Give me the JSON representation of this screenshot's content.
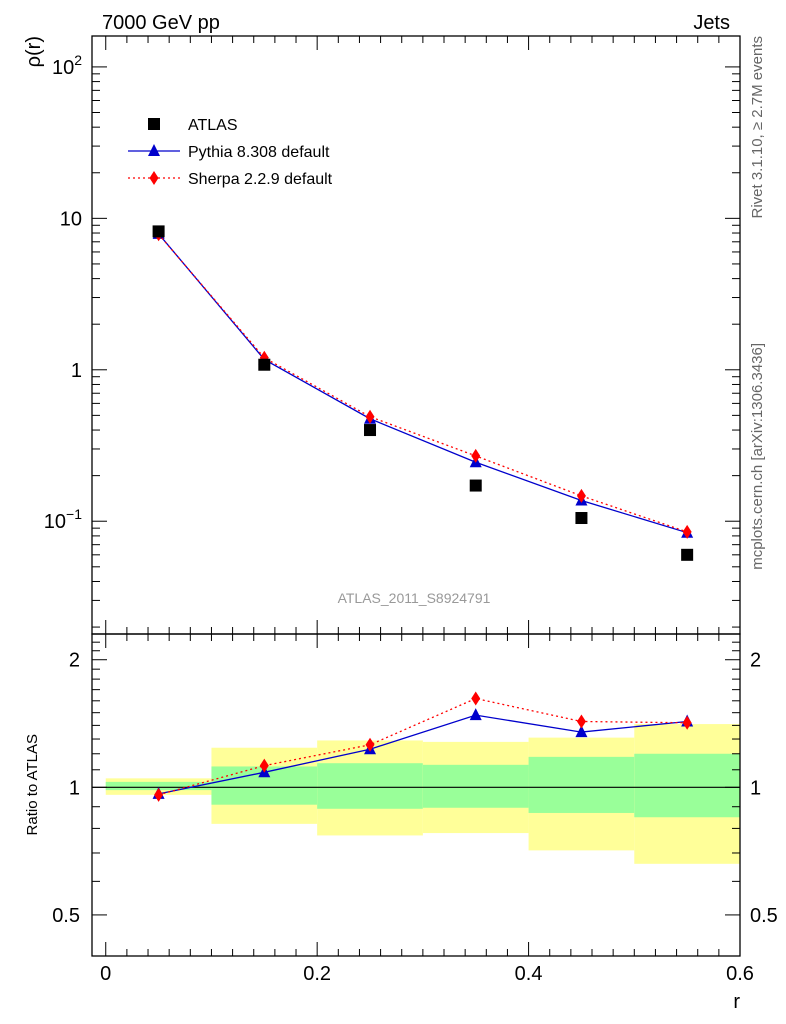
{
  "header": {
    "left": "7000 GeV pp",
    "right": "Jets"
  },
  "side_text": {
    "rivet": "Rivet 3.1.10, ≥ 2.7M events",
    "mcplots": "mcplots.cern.ch [arXiv:1306.3436]"
  },
  "watermark": "ATLAS_2011_S8924791",
  "chart_data": [
    {
      "type": "scatter",
      "ylabel": "ρ(r)",
      "xlabel": "r",
      "ylog": true,
      "ylim": [
        0.018,
        160
      ],
      "xlim": [
        -0.013,
        0.6
      ],
      "y_ticks": [
        "10^-1",
        "1",
        "10",
        "10^2"
      ],
      "legend_placement": "top-left",
      "series": [
        {
          "name": "ATLAS",
          "marker": "square",
          "color": "#000000",
          "x": [
            0.05,
            0.15,
            0.25,
            0.35,
            0.45,
            0.55
          ],
          "values": [
            8.2,
            1.08,
            0.4,
            0.172,
            0.105,
            0.06
          ]
        },
        {
          "name": "Pythia 8.308 default",
          "marker": "triangle",
          "line": "solid",
          "color": "#0000cc",
          "x": [
            0.05,
            0.15,
            0.25,
            0.35,
            0.45,
            0.55
          ],
          "values": [
            7.9,
            1.17,
            0.475,
            0.245,
            0.137,
            0.084
          ]
        },
        {
          "name": "Sherpa 2.2.9 default",
          "marker": "diamond",
          "line": "dotted",
          "color": "#ff0000",
          "x": [
            0.05,
            0.15,
            0.25,
            0.35,
            0.45,
            0.55
          ],
          "values": [
            7.85,
            1.2,
            0.49,
            0.27,
            0.147,
            0.085
          ]
        }
      ]
    },
    {
      "type": "line",
      "ylabel": "Ratio to ATLAS",
      "xlabel": "r",
      "ylog": true,
      "ylim": [
        0.4,
        2.3
      ],
      "xlim": [
        -0.013,
        0.6
      ],
      "x_ticks": [
        0,
        0.2,
        0.4,
        0.6
      ],
      "y_ticks": [
        0.5,
        1,
        2
      ],
      "bands": [
        {
          "x0": 0.0,
          "x1": 0.1,
          "green": [
            0.985,
            1.03
          ],
          "yellow": [
            0.96,
            1.05
          ]
        },
        {
          "x0": 0.1,
          "x1": 0.2,
          "green": [
            0.91,
            1.12
          ],
          "yellow": [
            0.82,
            1.24
          ]
        },
        {
          "x0": 0.2,
          "x1": 0.3,
          "green": [
            0.89,
            1.14
          ],
          "yellow": [
            0.77,
            1.29
          ]
        },
        {
          "x0": 0.3,
          "x1": 0.4,
          "green": [
            0.895,
            1.13
          ],
          "yellow": [
            0.78,
            1.28
          ]
        },
        {
          "x0": 0.4,
          "x1": 0.5,
          "green": [
            0.87,
            1.18
          ],
          "yellow": [
            0.71,
            1.31
          ]
        },
        {
          "x0": 0.5,
          "x1": 0.6,
          "green": [
            0.85,
            1.2
          ],
          "yellow": [
            0.66,
            1.41
          ]
        }
      ],
      "series": [
        {
          "name": "Pythia 8.308 default",
          "marker": "triangle",
          "line": "solid",
          "color": "#0000cc",
          "x": [
            0.05,
            0.15,
            0.25,
            0.35,
            0.45,
            0.55
          ],
          "values": [
            0.965,
            1.085,
            1.23,
            1.48,
            1.35,
            1.43
          ]
        },
        {
          "name": "Sherpa 2.2.9 default",
          "marker": "diamond",
          "line": "dotted",
          "color": "#ff0000",
          "x": [
            0.05,
            0.15,
            0.25,
            0.35,
            0.45,
            0.55
          ],
          "values": [
            0.96,
            1.125,
            1.26,
            1.62,
            1.43,
            1.42
          ]
        }
      ]
    }
  ]
}
